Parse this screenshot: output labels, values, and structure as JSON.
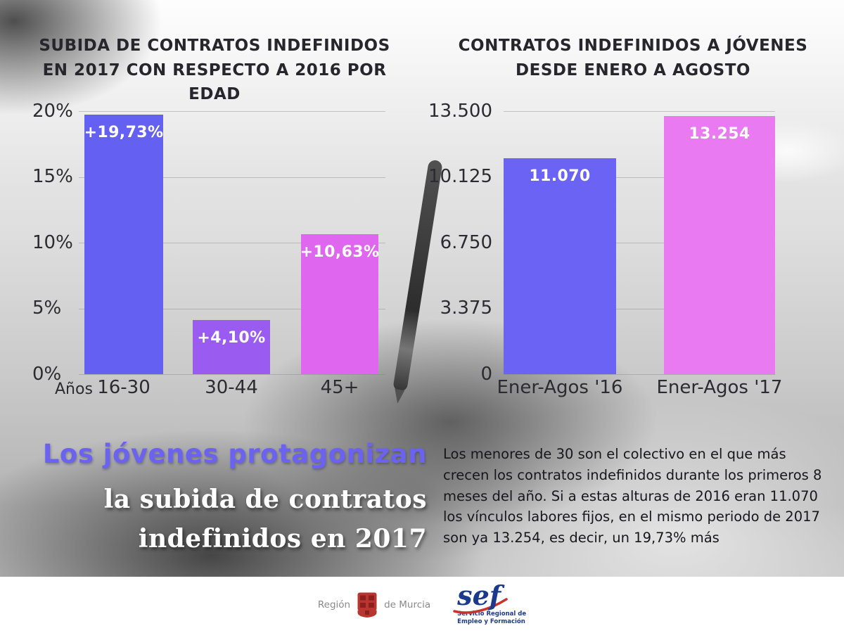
{
  "chart_data": [
    {
      "type": "bar",
      "title": "SUBIDA DE CONTRATOS INDEFINIDOS EN 2017 CON RESPECTO A 2016 POR EDAD",
      "categories": [
        "16-30",
        "30-44",
        "45+"
      ],
      "values": [
        19.73,
        4.1,
        10.63
      ],
      "labels": [
        "+19,73%",
        "+4,10%",
        "+10,63%"
      ],
      "bar_colors": [
        "#6461f2",
        "#9a5cf0",
        "#df66ef"
      ],
      "xlabel": "Años",
      "ylabel": "",
      "ylim": [
        0,
        20
      ],
      "yticks": [
        "20%",
        "15%",
        "10%",
        "5%",
        "0%"
      ],
      "grid": true,
      "legend": false
    },
    {
      "type": "bar",
      "title": "CONTRATOS INDEFINIDOS A JÓVENES DESDE ENERO A AGOSTO",
      "categories": [
        "Ener-Agos '16",
        "Ener-Agos '17"
      ],
      "values": [
        11070,
        13254
      ],
      "labels": [
        "11.070",
        "13.254"
      ],
      "bar_colors": [
        "#6a63f4",
        "#e97af2"
      ],
      "xlabel": "",
      "ylabel": "",
      "ylim": [
        0,
        13500
      ],
      "yticks": [
        "13.500",
        "10.125",
        "6.750",
        "3.375",
        "0"
      ],
      "grid": true,
      "legend": false
    }
  ],
  "headline": {
    "line1": "Los jóvenes protagonizan",
    "line2": "la subida de contratos",
    "line3": "indefinidos en 2017",
    "accent_color": "#6b62f0"
  },
  "paragraph": "Los menores de 30 son el colectivo en el que más crecen los contratos indefinidos durante los primeros 8 meses del año. Si a estas alturas de 2016 eran 11.070 los vínculos labores fijos, en el mismo periodo de 2017 son ya 13.254, es decir, un 19,73% más",
  "footer": {
    "murcia_left": "Región",
    "murcia_right": "de Murcia",
    "sef_word": "sef",
    "sef_sub1": "Servicio Regional de",
    "sef_sub2": "Empleo y Formación"
  }
}
